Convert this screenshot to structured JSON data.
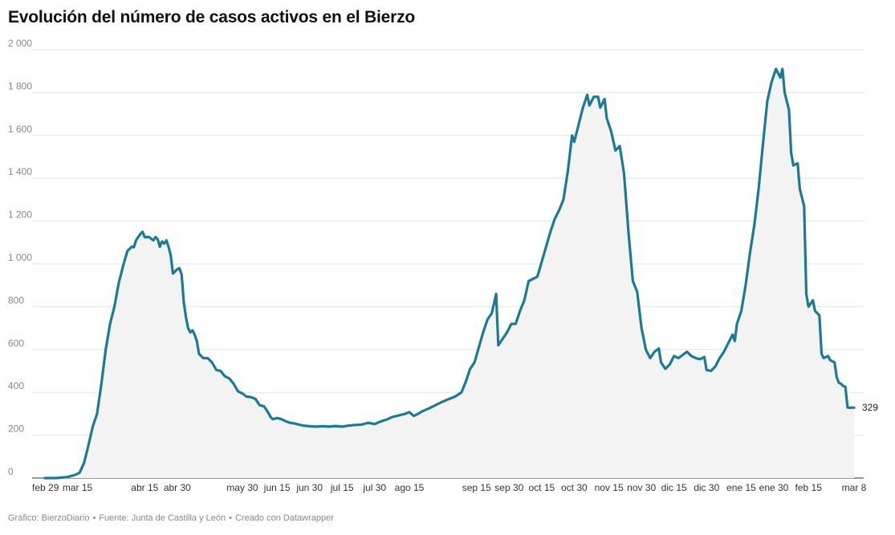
{
  "title": "Evolución del número de casos activos en el Bierzo",
  "footer": {
    "grafico": "Gráfico: BierzoDiario",
    "fuente": "Fuente: Junta de Castilla y León",
    "creado": "Creado con Datawrapper",
    "separator": "•"
  },
  "colors": {
    "line": "#1b7a94",
    "area": "#f3f3f4",
    "grid": "#e3e3e3",
    "axis_text": "#888888",
    "last_label": "#222222"
  },
  "chart_data": {
    "type": "area",
    "title": "Evolución del número de casos activos en el Bierzo",
    "xlabel": "",
    "ylabel": "",
    "x_unit": "date",
    "xlim": [
      "2020-02-29",
      "2021-03-08"
    ],
    "ylim": [
      0,
      2000
    ],
    "y_ticks": [
      0,
      200,
      400,
      600,
      800,
      1000,
      1200,
      1400,
      1600,
      1800,
      2000
    ],
    "y_tick_labels": [
      "0",
      "200",
      "400",
      "600",
      "800",
      "1 000",
      "1 200",
      "1 400",
      "1 600",
      "1 800",
      "2 000"
    ],
    "x_ticks": [
      {
        "date": "2020-02-29",
        "label": "feb 29"
      },
      {
        "date": "2020-03-15",
        "label": "mar 15"
      },
      {
        "date": "2020-04-15",
        "label": "abr 15"
      },
      {
        "date": "2020-04-30",
        "label": "abr 30"
      },
      {
        "date": "2020-05-30",
        "label": "may 30"
      },
      {
        "date": "2020-06-15",
        "label": "jun 15"
      },
      {
        "date": "2020-06-30",
        "label": "jun 30"
      },
      {
        "date": "2020-07-15",
        "label": "jul 15"
      },
      {
        "date": "2020-07-30",
        "label": "jul 30"
      },
      {
        "date": "2020-08-15",
        "label": "ago 15"
      },
      {
        "date": "2020-09-15",
        "label": "sep 15"
      },
      {
        "date": "2020-09-30",
        "label": "sep 30"
      },
      {
        "date": "2020-10-15",
        "label": "oct 15"
      },
      {
        "date": "2020-10-30",
        "label": "oct 30"
      },
      {
        "date": "2020-11-15",
        "label": "nov 15"
      },
      {
        "date": "2020-11-30",
        "label": "nov 30"
      },
      {
        "date": "2020-12-15",
        "label": "dic 15"
      },
      {
        "date": "2020-12-30",
        "label": "dic 30"
      },
      {
        "date": "2021-01-15",
        "label": "ene 15"
      },
      {
        "date": "2021-01-30",
        "label": "ene 30"
      },
      {
        "date": "2021-02-15",
        "label": "feb 15"
      },
      {
        "date": "2021-03-08",
        "label": "mar 8"
      }
    ],
    "grid": true,
    "last_value_label": "329",
    "series": [
      {
        "name": "",
        "points": [
          [
            "2020-02-29",
            0
          ],
          [
            "2020-03-05",
            0
          ],
          [
            "2020-03-10",
            4
          ],
          [
            "2020-03-14",
            15
          ],
          [
            "2020-03-16",
            25
          ],
          [
            "2020-03-18",
            70
          ],
          [
            "2020-03-20",
            150
          ],
          [
            "2020-03-22",
            240
          ],
          [
            "2020-03-24",
            300
          ],
          [
            "2020-03-26",
            440
          ],
          [
            "2020-03-28",
            600
          ],
          [
            "2020-03-30",
            720
          ],
          [
            "2020-04-01",
            800
          ],
          [
            "2020-04-03",
            910
          ],
          [
            "2020-04-05",
            990
          ],
          [
            "2020-04-07",
            1060
          ],
          [
            "2020-04-09",
            1080
          ],
          [
            "2020-04-10",
            1078
          ],
          [
            "2020-04-11",
            1110
          ],
          [
            "2020-04-13",
            1140
          ],
          [
            "2020-04-14",
            1150
          ],
          [
            "2020-04-15",
            1125
          ],
          [
            "2020-04-17",
            1125
          ],
          [
            "2020-04-19",
            1110
          ],
          [
            "2020-04-20",
            1125
          ],
          [
            "2020-04-21",
            1115
          ],
          [
            "2020-04-22",
            1080
          ],
          [
            "2020-04-23",
            1105
          ],
          [
            "2020-04-24",
            1095
          ],
          [
            "2020-04-25",
            1110
          ],
          [
            "2020-04-26",
            1080
          ],
          [
            "2020-04-27",
            1040
          ],
          [
            "2020-04-28",
            955
          ],
          [
            "2020-04-30",
            975
          ],
          [
            "2020-05-01",
            980
          ],
          [
            "2020-05-02",
            950
          ],
          [
            "2020-05-03",
            820
          ],
          [
            "2020-05-04",
            750
          ],
          [
            "2020-05-05",
            700
          ],
          [
            "2020-05-06",
            680
          ],
          [
            "2020-05-07",
            690
          ],
          [
            "2020-05-08",
            670
          ],
          [
            "2020-05-09",
            640
          ],
          [
            "2020-05-10",
            580
          ],
          [
            "2020-05-12",
            560
          ],
          [
            "2020-05-14",
            560
          ],
          [
            "2020-05-16",
            540
          ],
          [
            "2020-05-18",
            505
          ],
          [
            "2020-05-20",
            500
          ],
          [
            "2020-05-22",
            475
          ],
          [
            "2020-05-24",
            465
          ],
          [
            "2020-05-26",
            440
          ],
          [
            "2020-05-28",
            405
          ],
          [
            "2020-05-30",
            395
          ],
          [
            "2020-06-01",
            380
          ],
          [
            "2020-06-03",
            378
          ],
          [
            "2020-06-05",
            370
          ],
          [
            "2020-06-07",
            340
          ],
          [
            "2020-06-09",
            335
          ],
          [
            "2020-06-11",
            305
          ],
          [
            "2020-06-12",
            285
          ],
          [
            "2020-06-13",
            275
          ],
          [
            "2020-06-15",
            280
          ],
          [
            "2020-06-17",
            275
          ],
          [
            "2020-06-19",
            265
          ],
          [
            "2020-06-21",
            258
          ],
          [
            "2020-06-23",
            255
          ],
          [
            "2020-06-25",
            250
          ],
          [
            "2020-06-27",
            245
          ],
          [
            "2020-06-30",
            242
          ],
          [
            "2020-07-03",
            240
          ],
          [
            "2020-07-06",
            242
          ],
          [
            "2020-07-09",
            240
          ],
          [
            "2020-07-12",
            243
          ],
          [
            "2020-07-15",
            240
          ],
          [
            "2020-07-18",
            245
          ],
          [
            "2020-07-21",
            248
          ],
          [
            "2020-07-24",
            250
          ],
          [
            "2020-07-27",
            258
          ],
          [
            "2020-07-30",
            252
          ],
          [
            "2020-08-02",
            265
          ],
          [
            "2020-08-05",
            275
          ],
          [
            "2020-08-07",
            285
          ],
          [
            "2020-08-10",
            292
          ],
          [
            "2020-08-13",
            300
          ],
          [
            "2020-08-15",
            308
          ],
          [
            "2020-08-17",
            290
          ],
          [
            "2020-08-19",
            300
          ],
          [
            "2020-08-21",
            312
          ],
          [
            "2020-08-24",
            325
          ],
          [
            "2020-08-27",
            340
          ],
          [
            "2020-08-30",
            355
          ],
          [
            "2020-09-02",
            368
          ],
          [
            "2020-09-05",
            380
          ],
          [
            "2020-09-08",
            400
          ],
          [
            "2020-09-10",
            450
          ],
          [
            "2020-09-12",
            510
          ],
          [
            "2020-09-14",
            540
          ],
          [
            "2020-09-16",
            610
          ],
          [
            "2020-09-18",
            680
          ],
          [
            "2020-09-20",
            740
          ],
          [
            "2020-09-22",
            770
          ],
          [
            "2020-09-24",
            860
          ],
          [
            "2020-09-25",
            620
          ],
          [
            "2020-09-27",
            650
          ],
          [
            "2020-09-29",
            680
          ],
          [
            "2020-10-01",
            720
          ],
          [
            "2020-10-03",
            720
          ],
          [
            "2020-10-05",
            780
          ],
          [
            "2020-10-07",
            830
          ],
          [
            "2020-10-09",
            920
          ],
          [
            "2020-10-11",
            930
          ],
          [
            "2020-10-13",
            940
          ],
          [
            "2020-10-15",
            1010
          ],
          [
            "2020-10-17",
            1080
          ],
          [
            "2020-10-19",
            1150
          ],
          [
            "2020-10-21",
            1210
          ],
          [
            "2020-10-23",
            1250
          ],
          [
            "2020-10-25",
            1300
          ],
          [
            "2020-10-27",
            1430
          ],
          [
            "2020-10-29",
            1600
          ],
          [
            "2020-10-30",
            1570
          ],
          [
            "2020-11-01",
            1650
          ],
          [
            "2020-11-03",
            1730
          ],
          [
            "2020-11-05",
            1790
          ],
          [
            "2020-11-06",
            1740
          ],
          [
            "2020-11-08",
            1780
          ],
          [
            "2020-11-10",
            1780
          ],
          [
            "2020-11-11",
            1730
          ],
          [
            "2020-11-13",
            1770
          ],
          [
            "2020-11-14",
            1680
          ],
          [
            "2020-11-16",
            1620
          ],
          [
            "2020-11-18",
            1530
          ],
          [
            "2020-11-20",
            1550
          ],
          [
            "2020-11-22",
            1420
          ],
          [
            "2020-11-24",
            1150
          ],
          [
            "2020-11-26",
            920
          ],
          [
            "2020-11-28",
            870
          ],
          [
            "2020-11-30",
            700
          ],
          [
            "2020-12-02",
            600
          ],
          [
            "2020-12-04",
            560
          ],
          [
            "2020-12-06",
            590
          ],
          [
            "2020-12-08",
            605
          ],
          [
            "2020-12-09",
            540
          ],
          [
            "2020-12-11",
            510
          ],
          [
            "2020-12-13",
            530
          ],
          [
            "2020-12-15",
            570
          ],
          [
            "2020-12-17",
            560
          ],
          [
            "2020-12-19",
            575
          ],
          [
            "2020-12-21",
            590
          ],
          [
            "2020-12-23",
            570
          ],
          [
            "2020-12-25",
            560
          ],
          [
            "2020-12-27",
            555
          ],
          [
            "2020-12-29",
            565
          ],
          [
            "2020-12-30",
            505
          ],
          [
            "2021-01-01",
            500
          ],
          [
            "2021-01-03",
            520
          ],
          [
            "2021-01-05",
            560
          ],
          [
            "2021-01-07",
            590
          ],
          [
            "2021-01-09",
            630
          ],
          [
            "2021-01-11",
            670
          ],
          [
            "2021-01-12",
            640
          ],
          [
            "2021-01-13",
            720
          ],
          [
            "2021-01-15",
            780
          ],
          [
            "2021-01-17",
            900
          ],
          [
            "2021-01-19",
            1050
          ],
          [
            "2021-01-21",
            1180
          ],
          [
            "2021-01-23",
            1350
          ],
          [
            "2021-01-25",
            1560
          ],
          [
            "2021-01-27",
            1760
          ],
          [
            "2021-01-29",
            1850
          ],
          [
            "2021-01-31",
            1910
          ],
          [
            "2021-02-02",
            1870
          ],
          [
            "2021-02-03",
            1910
          ],
          [
            "2021-02-04",
            1800
          ],
          [
            "2021-02-06",
            1720
          ],
          [
            "2021-02-07",
            1520
          ],
          [
            "2021-02-08",
            1460
          ],
          [
            "2021-02-10",
            1470
          ],
          [
            "2021-02-11",
            1350
          ],
          [
            "2021-02-13",
            1270
          ],
          [
            "2021-02-14",
            860
          ],
          [
            "2021-02-15",
            800
          ],
          [
            "2021-02-17",
            830
          ],
          [
            "2021-02-18",
            780
          ],
          [
            "2021-02-20",
            760
          ],
          [
            "2021-02-21",
            580
          ],
          [
            "2021-02-22",
            560
          ],
          [
            "2021-02-24",
            570
          ],
          [
            "2021-02-25",
            550
          ],
          [
            "2021-02-27",
            540
          ],
          [
            "2021-02-28",
            470
          ],
          [
            "2021-03-01",
            445
          ],
          [
            "2021-03-02",
            440
          ],
          [
            "2021-03-03",
            430
          ],
          [
            "2021-03-04",
            425
          ],
          [
            "2021-03-05",
            330
          ],
          [
            "2021-03-06",
            328
          ],
          [
            "2021-03-07",
            329
          ],
          [
            "2021-03-08",
            329
          ]
        ]
      }
    ]
  }
}
